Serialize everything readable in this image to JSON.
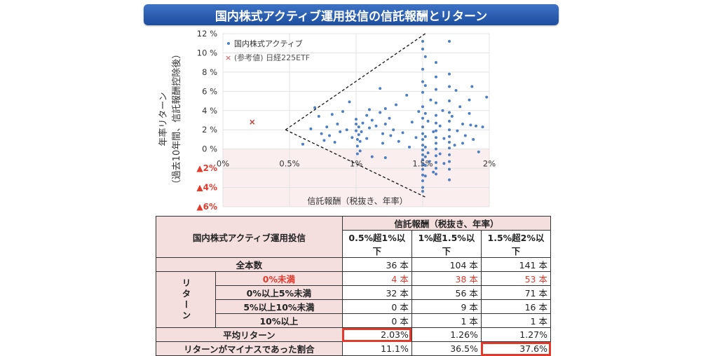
{
  "title": "国内株式アクティブ運用投信の信託報酬とリターン",
  "chart_data": {
    "type": "scatter",
    "xlabel": "信託報酬（税抜き、年率）",
    "ylabel_line1": "年率リターン",
    "ylabel_line2": "（過去10年間、信託報酬控除後）",
    "xlim": [
      0,
      2
    ],
    "ylim": [
      -6,
      12
    ],
    "x_ticks": [
      {
        "v": 0,
        "label": "0%"
      },
      {
        "v": 0.5,
        "label": "0.5%"
      },
      {
        "v": 1,
        "label": "1%"
      },
      {
        "v": 1.5,
        "label": "1.5%"
      },
      {
        "v": 2,
        "label": "2%"
      }
    ],
    "y_ticks": [
      {
        "v": 12,
        "label": "12 %",
        "neg": false
      },
      {
        "v": 10,
        "label": "10 %",
        "neg": false
      },
      {
        "v": 8,
        "label": "8 %",
        "neg": false
      },
      {
        "v": 6,
        "label": "6 %",
        "neg": false
      },
      {
        "v": 4,
        "label": "4 %",
        "neg": false
      },
      {
        "v": 2,
        "label": "2 %",
        "neg": false
      },
      {
        "v": 0,
        "label": "0 %",
        "neg": false
      },
      {
        "v": -2,
        "label": "▲2%",
        "neg": true
      },
      {
        "v": -4,
        "label": "▲4%",
        "neg": true
      },
      {
        "v": -6,
        "label": "▲6%",
        "neg": true
      }
    ],
    "negative_region_color": "#fbeeee",
    "series": [
      {
        "name": "国内株式アクティブ",
        "color": "#4e7fc2",
        "marker": "dot",
        "points": [
          [
            0.6,
            0.5
          ],
          [
            0.66,
            2.1
          ],
          [
            0.69,
            4.3
          ],
          [
            0.72,
            3.4
          ],
          [
            0.74,
            1.6
          ],
          [
            0.76,
            0.9
          ],
          [
            0.78,
            2.3
          ],
          [
            0.8,
            1.4
          ],
          [
            0.82,
            3.6
          ],
          [
            0.84,
            0.7
          ],
          [
            0.86,
            2.6
          ],
          [
            0.88,
            1.8
          ],
          [
            0.9,
            3.9
          ],
          [
            0.93,
            2.0
          ],
          [
            0.95,
            4.9
          ],
          [
            0.97,
            1.2
          ],
          [
            1.0,
            3.1
          ],
          [
            1.0,
            2.6
          ],
          [
            1.0,
            1.9
          ],
          [
            1.01,
            1.0
          ],
          [
            1.01,
            0.3
          ],
          [
            1.01,
            -0.5
          ],
          [
            1.02,
            2.3
          ],
          [
            1.02,
            1.5
          ],
          [
            1.03,
            0.8
          ],
          [
            1.03,
            -0.2
          ],
          [
            1.04,
            1.8
          ],
          [
            1.05,
            2.7
          ],
          [
            1.08,
            3.5
          ],
          [
            1.08,
            1.1
          ],
          [
            1.1,
            4.1
          ],
          [
            1.1,
            2.2
          ],
          [
            1.12,
            3.0
          ],
          [
            1.12,
            -0.8
          ],
          [
            1.15,
            2.4
          ],
          [
            1.18,
            6.3
          ],
          [
            1.18,
            3.8
          ],
          [
            1.2,
            1.6
          ],
          [
            1.2,
            0.6
          ],
          [
            1.22,
            4.2
          ],
          [
            1.22,
            2.6
          ],
          [
            1.22,
            -0.9
          ],
          [
            1.25,
            3.2
          ],
          [
            1.26,
            1.4
          ],
          [
            1.28,
            2.0
          ],
          [
            1.3,
            4.6
          ],
          [
            1.32,
            0.8
          ],
          [
            1.35,
            1.7
          ],
          [
            1.38,
            5.6
          ],
          [
            1.4,
            0.2
          ],
          [
            1.42,
            2.8
          ],
          [
            1.45,
            1.2
          ],
          [
            1.47,
            3.9
          ],
          [
            1.5,
            11.2
          ],
          [
            1.5,
            10.4
          ],
          [
            1.5,
            8.3
          ],
          [
            1.5,
            7.0
          ],
          [
            1.5,
            5.9
          ],
          [
            1.5,
            4.4
          ],
          [
            1.5,
            3.2
          ],
          [
            1.5,
            2.3
          ],
          [
            1.5,
            1.6
          ],
          [
            1.5,
            1.0
          ],
          [
            1.5,
            0.4
          ],
          [
            1.5,
            -0.1
          ],
          [
            1.5,
            -0.6
          ],
          [
            1.5,
            -1.1
          ],
          [
            1.5,
            -1.6
          ],
          [
            1.5,
            -2.1
          ],
          [
            1.5,
            -2.7
          ],
          [
            1.5,
            -3.3
          ],
          [
            1.5,
            -4.0
          ],
          [
            1.5,
            -4.4
          ],
          [
            1.52,
            9.6
          ],
          [
            1.52,
            6.6
          ],
          [
            1.52,
            3.7
          ],
          [
            1.52,
            1.3
          ],
          [
            1.52,
            0.2
          ],
          [
            1.52,
            -0.8
          ],
          [
            1.52,
            -1.7
          ],
          [
            1.52,
            -2.8
          ],
          [
            1.54,
            2.9
          ],
          [
            1.54,
            -0.4
          ],
          [
            1.55,
            -1.3
          ],
          [
            1.56,
            5.1
          ],
          [
            1.58,
            1.8
          ],
          [
            1.58,
            -2.4
          ],
          [
            1.6,
            9.0
          ],
          [
            1.6,
            7.5
          ],
          [
            1.6,
            6.2
          ],
          [
            1.6,
            4.8
          ],
          [
            1.6,
            3.5
          ],
          [
            1.6,
            2.7
          ],
          [
            1.6,
            1.9
          ],
          [
            1.6,
            1.2
          ],
          [
            1.6,
            0.6
          ],
          [
            1.6,
            0.0
          ],
          [
            1.6,
            -0.7
          ],
          [
            1.6,
            -1.4
          ],
          [
            1.6,
            -2.0
          ],
          [
            1.6,
            -2.6
          ],
          [
            1.63,
            2.4
          ],
          [
            1.63,
            -0.5
          ],
          [
            1.65,
            4.0
          ],
          [
            1.66,
            1.1
          ],
          [
            1.66,
            -1.5
          ],
          [
            1.7,
            11.2
          ],
          [
            1.7,
            7.8
          ],
          [
            1.7,
            6.5
          ],
          [
            1.7,
            5.0
          ],
          [
            1.7,
            3.8
          ],
          [
            1.7,
            2.9
          ],
          [
            1.7,
            2.0
          ],
          [
            1.7,
            1.3
          ],
          [
            1.7,
            0.7
          ],
          [
            1.7,
            0.1
          ],
          [
            1.7,
            -0.6
          ],
          [
            1.7,
            -1.3
          ],
          [
            1.7,
            -2.1
          ],
          [
            1.7,
            -3.2
          ],
          [
            1.72,
            3.4
          ],
          [
            1.74,
            0.4
          ],
          [
            1.75,
            6.1
          ],
          [
            1.76,
            1.9
          ],
          [
            1.78,
            4.4
          ],
          [
            1.8,
            2.6
          ],
          [
            1.8,
            0.6
          ],
          [
            1.82,
            1.4
          ],
          [
            1.85,
            5.1
          ],
          [
            1.85,
            3.7
          ],
          [
            1.86,
            2.5
          ],
          [
            1.87,
            6.5
          ],
          [
            1.88,
            1.0
          ],
          [
            1.9,
            2.4
          ],
          [
            1.92,
            -0.3
          ],
          [
            1.95,
            2.3
          ],
          [
            1.98,
            5.4
          ]
        ]
      },
      {
        "name": "(参考値) 日経225ETF",
        "color": "#c0504d",
        "marker": "x",
        "points": [
          [
            0.22,
            2.8
          ]
        ]
      }
    ],
    "guide_lines": [
      {
        "x1": 0.47,
        "y1": 2.0,
        "x2": 1.52,
        "y2": 12.0
      },
      {
        "x1": 0.47,
        "y1": 2.0,
        "x2": 1.52,
        "y2": -5.0
      }
    ]
  },
  "table": {
    "header": {
      "fund_type": "国内株式アクティブ運用投信",
      "fee_group": "信託報酬（税抜き、年率）",
      "bands": [
        "0.5%超1%以下",
        "1%超1.5%以下",
        "1.5%超2%以下"
      ]
    },
    "total": {
      "label": "全本数",
      "values": [
        "36 本",
        "104 本",
        "141 本"
      ]
    },
    "return_group_label": "リターン",
    "return_rows": [
      {
        "label": "0%未満",
        "values": [
          "4 本",
          "38 本",
          "53 本"
        ],
        "red": true
      },
      {
        "label": "0%以上5%未満",
        "values": [
          "32 本",
          "56 本",
          "71 本"
        ],
        "red": false
      },
      {
        "label": "5%以上10%未満",
        "values": [
          "0 本",
          "9 本",
          "16 本"
        ],
        "red": false
      },
      {
        "label": "10%以上",
        "values": [
          "0 本",
          "1 本",
          "1 本"
        ],
        "red": false
      }
    ],
    "avg": {
      "label": "平均リターン",
      "values": [
        "2.03%",
        "1.26%",
        "1.27%"
      ]
    },
    "neg_ratio": {
      "label": "リターンがマイナスであった割合",
      "values": [
        "11.1%",
        "36.5%",
        "37.6%"
      ]
    }
  }
}
